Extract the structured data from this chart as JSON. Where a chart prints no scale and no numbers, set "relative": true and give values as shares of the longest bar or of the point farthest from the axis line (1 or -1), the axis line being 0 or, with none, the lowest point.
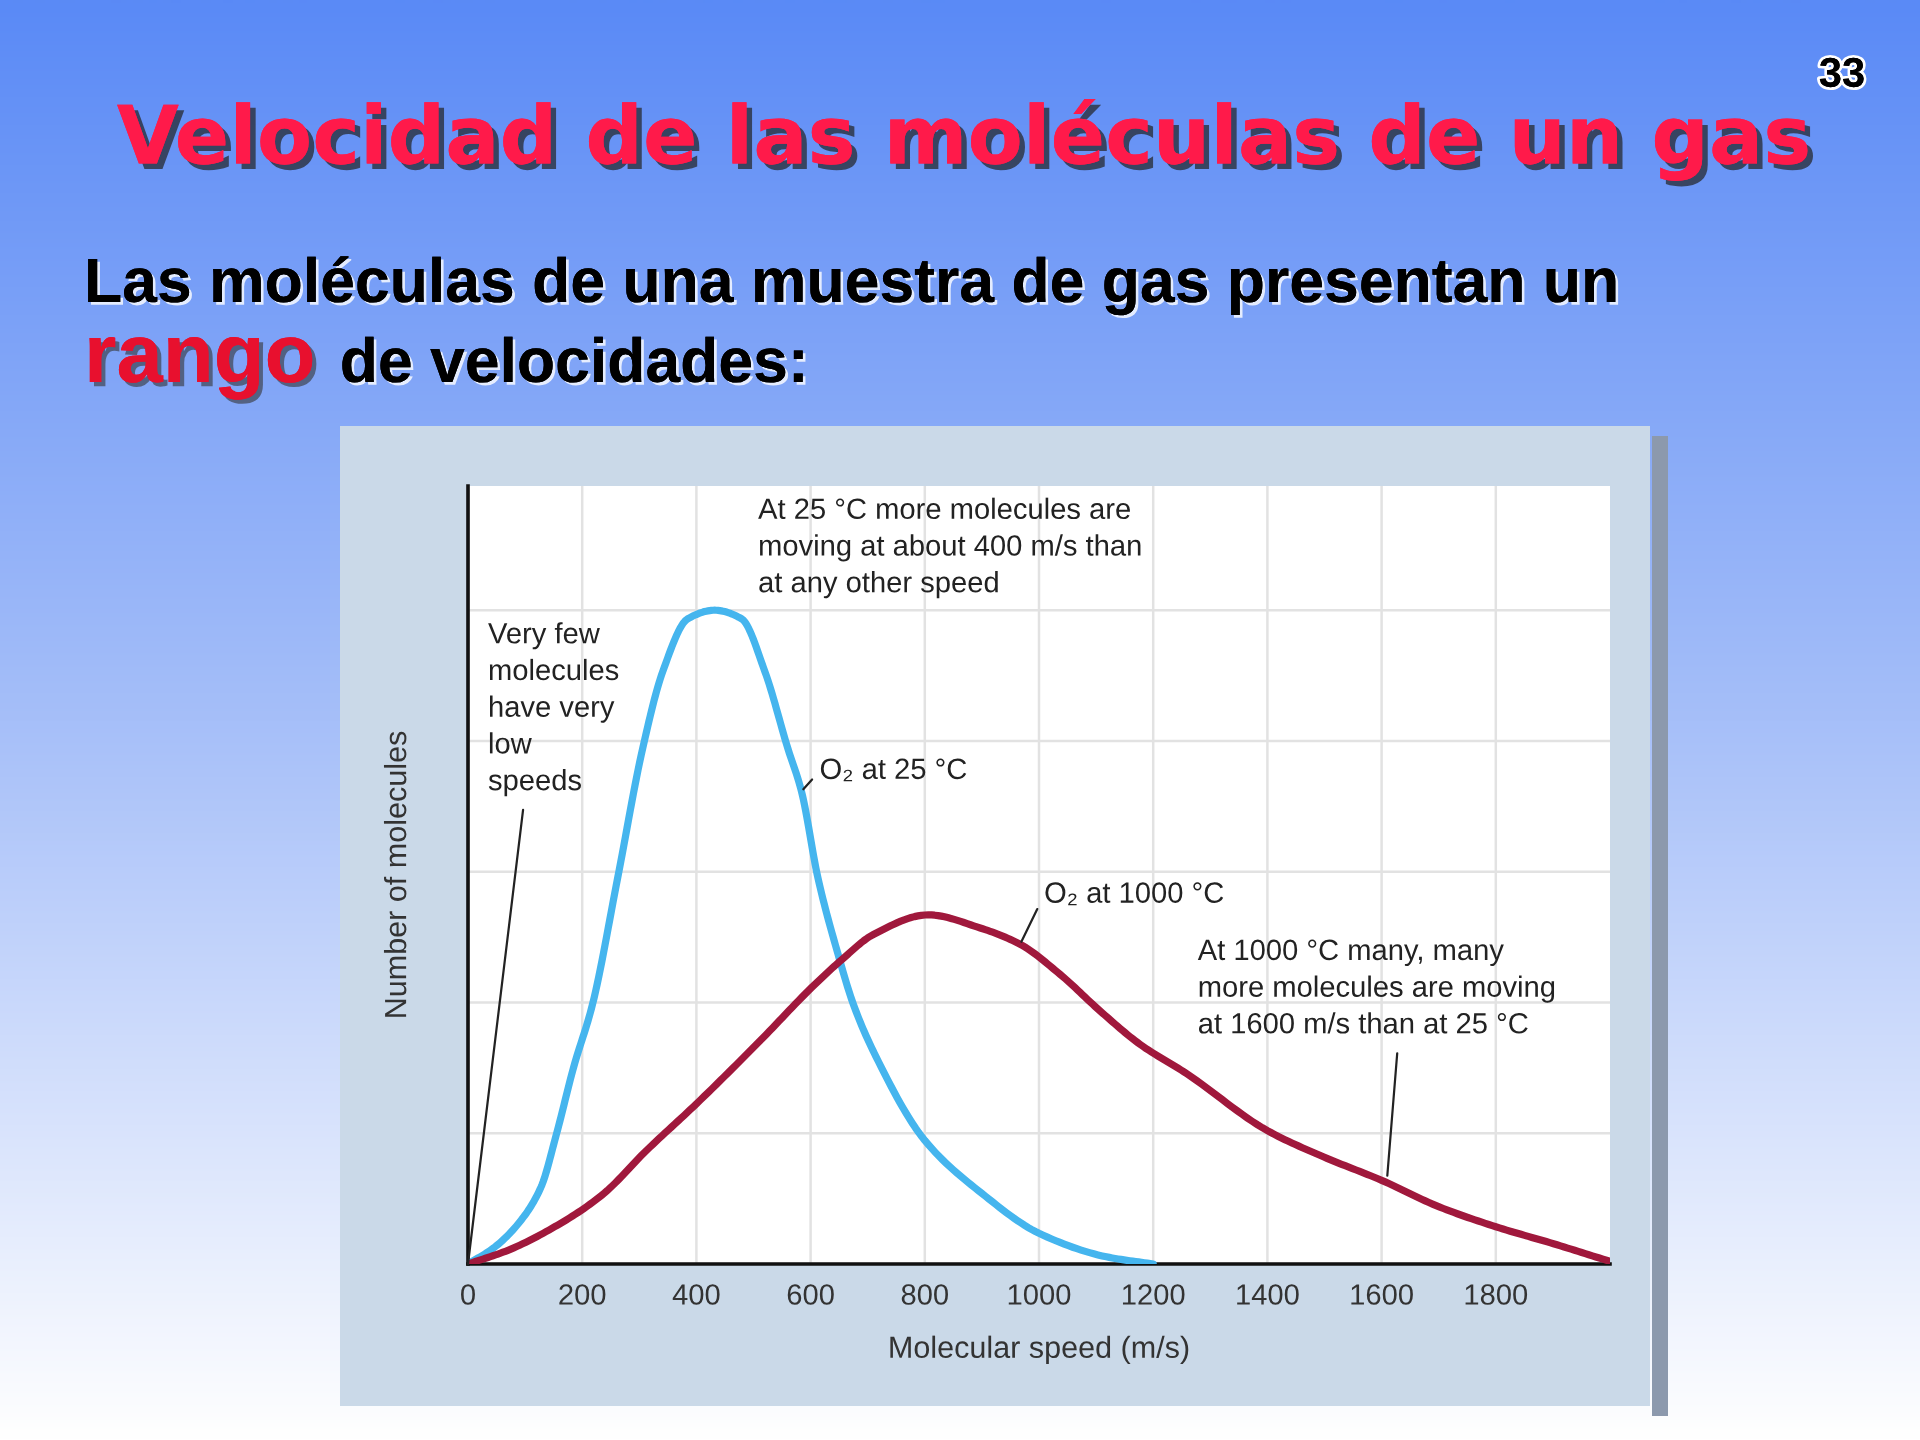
{
  "chart_data": {
    "type": "line",
    "title": "Velocidad de las moléculas de un gas",
    "subtitle": "Las moléculas de una muestra de gas presentan un rango de velocidades:",
    "xlabel": "Molecular speed (m/s)",
    "ylabel": "Number of molecules",
    "relative": true,
    "xlim": [
      0,
      2000
    ],
    "xticks": [
      0,
      200,
      400,
      600,
      800,
      1000,
      1200,
      1400,
      1600,
      1800
    ],
    "grid": true,
    "line_style": "solid",
    "series": [
      {
        "name": "O₂ at 25 °C",
        "color": "#45b5ee",
        "x": [
          0,
          47,
          93,
          128,
          155,
          185,
          218,
          262,
          306,
          341,
          385,
          432,
          479,
          520,
          560,
          584,
          613,
          648,
          675,
          714,
          800,
          900,
          1000,
          1118,
          1200
        ],
        "values": [
          0,
          0.026,
          0.067,
          0.118,
          0.199,
          0.301,
          0.397,
          0.59,
          0.789,
          0.906,
          0.987,
          1.0,
          0.987,
          0.906,
          0.789,
          0.723,
          0.59,
          0.474,
          0.397,
          0.318,
          0.189,
          0.108,
          0.047,
          0.011,
          0
        ]
      },
      {
        "name": "O₂ at 1000 °C",
        "color": "#a0183c",
        "x": [
          0,
          70,
          152,
          234,
          313,
          400,
          511,
          602,
          654,
          710,
          806,
          897,
          967,
          1037,
          1107,
          1177,
          1259,
          1400,
          1498,
          1600,
          1702,
          1800,
          1901,
          2000
        ],
        "values": [
          0,
          0.021,
          0.057,
          0.105,
          0.174,
          0.245,
          0.341,
          0.423,
          0.465,
          0.504,
          0.534,
          0.514,
          0.489,
          0.443,
          0.387,
          0.336,
          0.291,
          0.204,
          0.164,
          0.128,
          0.087,
          0.057,
          0.031,
          0.004
        ]
      }
    ],
    "annotations": [
      {
        "text": "Very few molecules have very low speeds",
        "x": 0,
        "y": 0
      },
      "At 25 °C more molecules are moving at about 400 m/s than at any other speed",
      {
        "text": "At 1000 °C many, many more molecules are moving at 1600 m/s than at 25 °C",
        "x": 1610,
        "y": 0.135
      },
      "33"
    ]
  }
}
